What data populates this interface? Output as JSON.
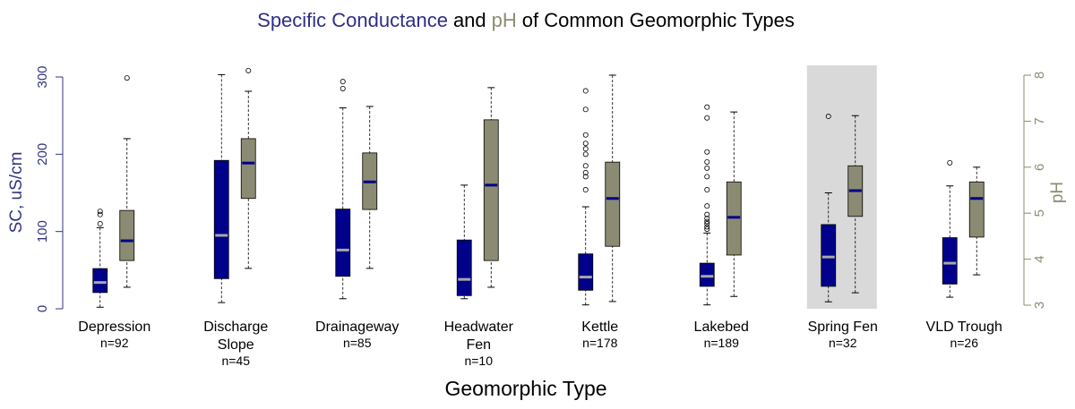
{
  "chart_data": {
    "type": "boxplot",
    "title": [
      "Specific Conductance",
      "and",
      "pH",
      "of Common Geomorphic Types"
    ],
    "title_colors": [
      "#2e2e86",
      "#000000",
      "#8d8c73",
      "#000000"
    ],
    "categories": [
      [
        "Depression"
      ],
      [
        "Discharge",
        "Slope"
      ],
      [
        "Drainageway"
      ],
      [
        "Headwater",
        "Fen"
      ],
      [
        "Kettle"
      ],
      [
        "Lakebed"
      ],
      [
        "Spring Fen"
      ],
      [
        "VLD Trough"
      ]
    ],
    "n_labels": [
      "n=92",
      "n=45",
      "n=85",
      "n=10",
      "n=178",
      "n=189",
      "n=32",
      "n=26"
    ],
    "xlabel": "Geomorphic Type",
    "ylabel": "SC, uS/cm",
    "y2label": "pH",
    "ylim": [
      0,
      300
    ],
    "yticks": [
      0,
      100,
      200,
      300
    ],
    "y2lim": [
      3,
      8
    ],
    "y2ticks": [
      3,
      4,
      5,
      6,
      7,
      8
    ],
    "highlight_category": 6,
    "series": [
      {
        "axis": "y",
        "color": "#00008b",
        "median_color": "#a8a8a8",
        "axis_color": "#33337f",
        "stats": [
          {
            "low": 2,
            "q1": 21,
            "median": 34,
            "q3": 52,
            "high": 105,
            "outliers": [
              110,
              122,
              126
            ]
          },
          {
            "low": 8,
            "q1": 39,
            "median": 95,
            "q3": 192,
            "high": 303,
            "outliers": []
          },
          {
            "low": 13,
            "q1": 42,
            "median": 76,
            "q3": 129,
            "high": 260,
            "outliers": [
              285,
              294
            ]
          },
          {
            "low": 13,
            "q1": 17,
            "median": 38,
            "q3": 89,
            "high": 160,
            "outliers": []
          },
          {
            "low": 5,
            "q1": 24,
            "median": 41,
            "q3": 71,
            "high": 132,
            "outliers": [
              154,
              171,
              176,
              185,
              200,
              207,
              214,
              225,
              258,
              282
            ]
          },
          {
            "low": 5,
            "q1": 29,
            "median": 42,
            "q3": 59,
            "high": 98,
            "outliers": [
              103,
              106,
              110,
              113,
              117,
              122,
              133,
              154,
              171,
              182,
              190,
              203,
              247,
              261
            ]
          },
          {
            "low": 9,
            "q1": 29,
            "median": 67,
            "q3": 109,
            "high": 150,
            "outliers": [
              249
            ]
          },
          {
            "low": 15,
            "q1": 32,
            "median": 59,
            "q3": 92,
            "high": 159,
            "outliers": [
              189
            ]
          }
        ]
      },
      {
        "axis": "y2",
        "color": "#8b8b73",
        "median_color": "#00008b",
        "axis_color": "#8d8c73",
        "stats": [
          {
            "low": 3.39,
            "q1": 3.97,
            "median": 4.4,
            "q3": 5.06,
            "high": 6.62,
            "outliers": [
              7.94
            ]
          },
          {
            "low": 3.8,
            "q1": 5.32,
            "median": 6.09,
            "q3": 6.62,
            "high": 7.65,
            "outliers": [
              8.1
            ]
          },
          {
            "low": 3.8,
            "q1": 5.08,
            "median": 5.68,
            "q3": 6.31,
            "high": 7.32,
            "outliers": []
          },
          {
            "low": 3.39,
            "q1": 3.97,
            "median": 5.61,
            "q3": 7.03,
            "high": 7.73,
            "outliers": []
          },
          {
            "low": 3.08,
            "q1": 4.28,
            "median": 5.32,
            "q3": 6.11,
            "high": 8.0,
            "outliers": []
          },
          {
            "low": 3.19,
            "q1": 4.09,
            "median": 4.91,
            "q3": 5.68,
            "high": 7.2,
            "outliers": []
          },
          {
            "low": 3.27,
            "q1": 4.93,
            "median": 5.49,
            "q3": 6.03,
            "high": 7.12,
            "outliers": []
          },
          {
            "low": 3.66,
            "q1": 4.48,
            "median": 5.32,
            "q3": 5.68,
            "high": 6.0,
            "outliers": []
          }
        ]
      }
    ]
  }
}
